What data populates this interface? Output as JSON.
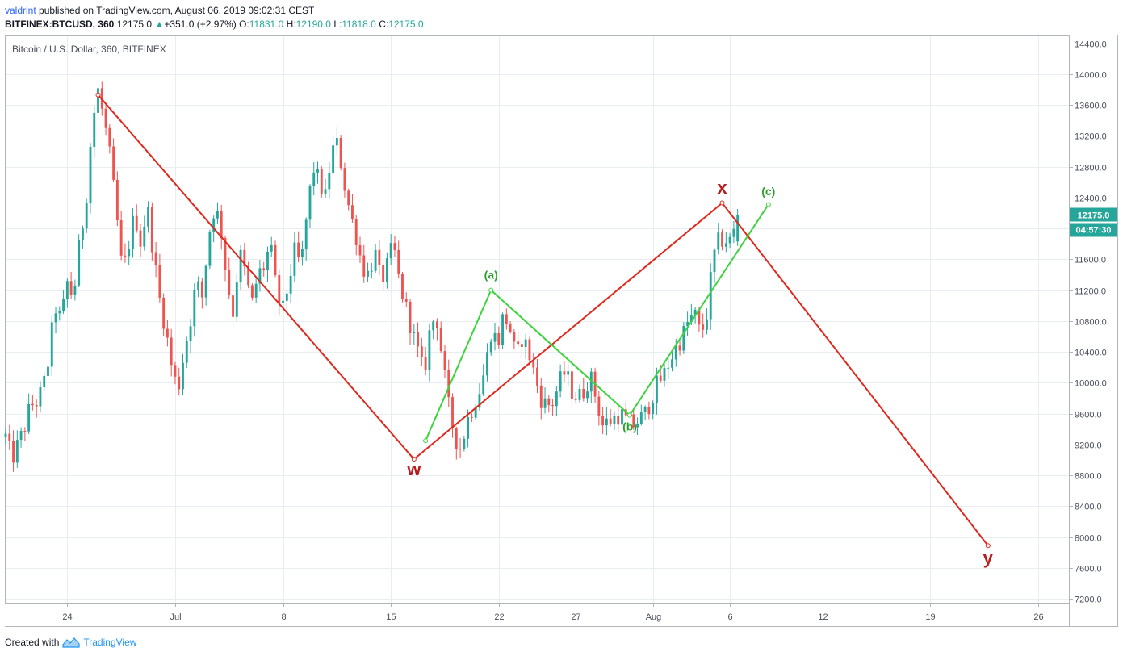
{
  "header": {
    "user": "valdrint",
    "published_text": " published on TradingView.com, August 06, 2019 09:02:31 CEST",
    "symbol": "BITFINEX:BTCUSD, 360",
    "last": "12175.0",
    "change": "+351.0 (+2.97%)",
    "open_label": "O:",
    "open": "11831.0",
    "high_label": "H:",
    "high": "12190.0",
    "low_label": "L:",
    "low": "11818.0",
    "close_label": "C:",
    "close": "12175.0"
  },
  "footer": {
    "created_with": "Created with",
    "brand": "TradingView"
  },
  "colors": {
    "up": "#26a69a",
    "down": "#ef5350",
    "red_wave": "#e0271b",
    "green_wave": "#3cd33c",
    "label_red": "#b71c1c",
    "label_green": "#2e9e2e",
    "price_tag": "#26a69a",
    "grid": "#e8edf3"
  },
  "chart_data": {
    "type": "candlestick",
    "title": "Bitcoin / U.S. Dollar, 360, BITFINEX",
    "y_axis": {
      "ylim": [
        7150,
        14500
      ],
      "ticks": [
        "7200.0",
        "7600.0",
        "8000.0",
        "8400.0",
        "8800.0",
        "9200.0",
        "9600.0",
        "10000.0",
        "10400.0",
        "10800.0",
        "11200.0",
        "11600.0",
        "12000.0",
        "12400.0",
        "12800.0",
        "13200.0",
        "13600.0",
        "14000.0",
        "14400.0"
      ],
      "position": "right"
    },
    "x_axis": {
      "start_date": "2019-06-20",
      "end_date": "2019-08-28",
      "ticks": [
        {
          "label": "24",
          "date": "2019-06-24"
        },
        {
          "label": "Jul",
          "date": "2019-07-01"
        },
        {
          "label": "8",
          "date": "2019-07-08"
        },
        {
          "label": "15",
          "date": "2019-07-15"
        },
        {
          "label": "22",
          "date": "2019-07-22"
        },
        {
          "label": "27",
          "date": "2019-07-27"
        },
        {
          "label": "Aug",
          "date": "2019-08-01"
        },
        {
          "label": "6",
          "date": "2019-08-06"
        },
        {
          "label": "12",
          "date": "2019-08-12"
        },
        {
          "label": "19",
          "date": "2019-08-19"
        },
        {
          "label": "26",
          "date": "2019-08-26"
        }
      ]
    },
    "grid": true,
    "last_price": {
      "value": 12175.0,
      "label": "12175.0",
      "countdown": "04:57:30"
    },
    "candle_interval_hours": 6,
    "candles_first_date": "2019-06-20T00:00",
    "path": [
      [
        9300,
        9000,
        9200,
        9400,
        9700,
        9750
      ],
      [
        9900,
        10300,
        11000,
        10800,
        11300,
        11100
      ],
      [
        11800,
        12300,
        13300,
        13800,
        13400,
        12900
      ],
      [
        12200,
        11400,
        11800,
        12200,
        11800,
        12300
      ],
      [
        11700,
        11100,
        10700,
        10200,
        9900,
        10400
      ],
      [
        10800,
        11300,
        11100,
        11900,
        12300,
        12000
      ],
      [
        11300,
        10900,
        11700,
        11400,
        11000,
        11400
      ],
      [
        11500,
        11800,
        11200,
        10900,
        11300,
        11700
      ],
      [
        11500,
        12200,
        12800,
        12600,
        12400,
        13000
      ],
      [
        13100,
        12600,
        12200,
        11900,
        11500,
        11400
      ],
      [
        11700,
        11300,
        11500,
        11800,
        11300,
        11000
      ],
      [
        10700,
        10400,
        10100,
        10700,
        10900,
        10300
      ],
      [
        9700,
        9300,
        9150,
        9500,
        9700,
        9900
      ],
      [
        10200,
        10700,
        10500,
        10900,
        10700,
        10300
      ],
      [
        10600,
        10400,
        10100,
        9800,
        9700,
        9750
      ],
      [
        10000,
        10150,
        9900,
        9800,
        9900,
        10100
      ],
      [
        9800,
        9450,
        9500,
        9550,
        9600,
        9500
      ],
      [
        9450,
        9520,
        9600,
        9800,
        10000,
        10100
      ],
      [
        10300,
        10450,
        10600,
        10800,
        10900,
        10600
      ],
      [
        10900,
        11600,
        11850,
        11850,
        11831,
        12175
      ]
    ],
    "waves": [
      {
        "points": [
          {
            "date": "2019-06-26T00:00",
            "value": 13730
          },
          {
            "date": "2019-07-16T12:00",
            "value": 9010
          },
          {
            "date": "2019-08-05T12:00",
            "value": 12330
          },
          {
            "date": "2019-08-22T18:00",
            "value": 7890
          }
        ],
        "labels": [
          {
            "text": "w",
            "date": "2019-07-16T12:00",
            "value": 8800
          },
          {
            "text": "x",
            "date": "2019-08-05T12:00",
            "value": 12450
          },
          {
            "text": "y",
            "date": "2019-08-22T18:00",
            "value": 7650
          }
        ]
      },
      {
        "points": [
          {
            "date": "2019-07-17T06:00",
            "value": 9250
          },
          {
            "date": "2019-07-21T12:00",
            "value": 11200
          },
          {
            "date": "2019-07-30T12:00",
            "value": 9580
          },
          {
            "date": "2019-08-08T12:00",
            "value": 12310
          }
        ],
        "labels": [
          {
            "text": "(a)",
            "date": "2019-07-21T12:00",
            "value": 11350
          },
          {
            "text": "(b)",
            "date": "2019-07-30T12:00",
            "value": 9380
          },
          {
            "text": "(c)",
            "date": "2019-08-08T12:00",
            "value": 12430
          }
        ]
      }
    ]
  }
}
